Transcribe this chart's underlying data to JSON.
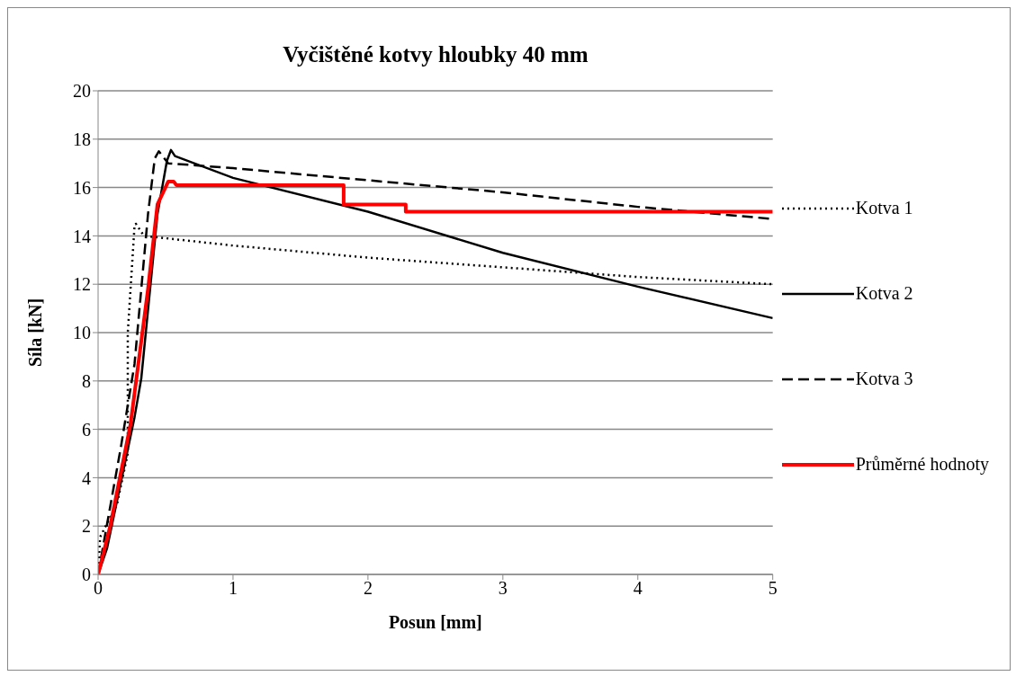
{
  "chart_data": {
    "type": "line",
    "title": "Vyčištěné kotvy hloubky  40 mm",
    "xlabel": "Posun [mm]",
    "ylabel": "Síla [kN]",
    "xlim": [
      0,
      5
    ],
    "xticks": [
      0,
      1,
      2,
      3,
      4,
      5
    ],
    "ylim": [
      0,
      20
    ],
    "yticks": [
      0,
      2,
      4,
      6,
      8,
      10,
      12,
      14,
      16,
      18,
      20
    ],
    "grid": "y",
    "legend": "right",
    "marker": "none",
    "series": [
      {
        "name": "Kotva 1",
        "color": "#000000",
        "line_style": "dotted",
        "x": [
          0,
          0.015,
          0.14,
          0.22,
          0.22,
          0.27,
          0.28,
          0.34,
          1,
          2,
          3,
          4,
          5
        ],
        "values": [
          0,
          1.55,
          2.9,
          5.0,
          10.0,
          14.4,
          14.5,
          14.0,
          13.6,
          13.1,
          12.7,
          12.3,
          12.0
        ]
      },
      {
        "name": "Kotva 2",
        "color": "#000000",
        "line_style": "solid",
        "x": [
          0,
          0.066,
          0.27,
          0.32,
          0.44,
          0.51,
          0.54,
          0.57,
          1,
          2,
          3,
          4,
          5
        ],
        "values": [
          0,
          1.07,
          6.5,
          8.1,
          14.9,
          17.1,
          17.55,
          17.3,
          16.4,
          15.0,
          13.3,
          11.9,
          10.6
        ]
      },
      {
        "name": "Kotva 3",
        "color": "#000000",
        "line_style": "dashed",
        "x": [
          0,
          0.17,
          0.27,
          0.37,
          0.42,
          0.45,
          0.52,
          1,
          2,
          3,
          4,
          5
        ],
        "values": [
          0,
          5.3,
          8.7,
          14.9,
          17.2,
          17.5,
          17.0,
          16.8,
          16.3,
          15.8,
          15.2,
          14.7
        ]
      },
      {
        "name": "Průměrné hodnoty",
        "color": "#ff0000",
        "line_style": "solid",
        "x": [
          0,
          0.09,
          0.24,
          0.37,
          0.44,
          0.52,
          0.56,
          0.58,
          1.82,
          1.82,
          2.28,
          2.28,
          5
        ],
        "values": [
          0,
          2.0,
          6.2,
          11.8,
          15.3,
          16.25,
          16.25,
          16.1,
          16.1,
          15.3,
          15.3,
          15.0,
          15.0
        ]
      }
    ]
  }
}
